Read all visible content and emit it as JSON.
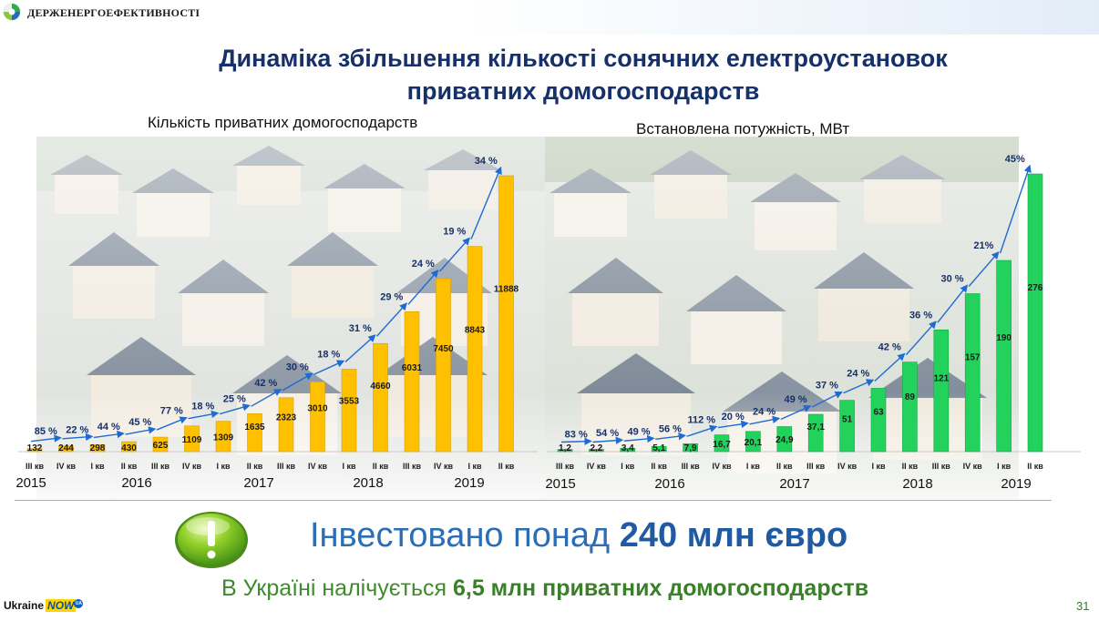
{
  "header": {
    "org": "ДЕРЖЕНЕРГОЕФЕКТИВНОСТІ"
  },
  "title": {
    "line1": "Динаміка збільшення кількості сонячних електроустановок",
    "line2": "приватних домогосподарств"
  },
  "colors": {
    "left_bars": "#ffc000",
    "right_bars": "#22d25c",
    "arrow": "#1e6bd2",
    "title": "#17306a"
  },
  "chart_data": [
    {
      "type": "bar",
      "subtitle": "Кількість приватних домогосподарств",
      "categories": [
        "III кв",
        "IV кв",
        "I кв",
        "II кв",
        "III кв",
        "IV кв",
        "I кв",
        "II кв",
        "III кв",
        "IV кв",
        "I кв",
        "II кв",
        "III кв",
        "IV кв",
        "I кв",
        "II кв"
      ],
      "value_labels": [
        "132",
        "244",
        "298",
        "430",
        "625",
        "1109",
        "1309",
        "1635",
        "2323",
        "3010",
        "3553",
        "4660",
        "6031",
        "7450",
        "8843",
        "11888"
      ],
      "values": [
        132,
        244,
        298,
        430,
        625,
        1109,
        1309,
        1635,
        2323,
        3010,
        3553,
        4660,
        6031,
        7450,
        8843,
        11888
      ],
      "growth_labels": [
        "85 %",
        "22 %",
        "44 %",
        "45 %",
        "77 %",
        "18 %",
        "25 %",
        "42 %",
        "30 %",
        "18 %",
        "31 %",
        "29 %",
        "24 %",
        "19 %",
        "34 %"
      ],
      "years": [
        {
          "label": "2015",
          "first": 0,
          "last": 0
        },
        {
          "label": "2016",
          "first": 1,
          "last": 4
        },
        {
          "label": "2017",
          "first": 5,
          "last": 8
        },
        {
          "label": "2018",
          "first": 9,
          "last": 12
        },
        {
          "label": "2019",
          "first": 13,
          "last": 15
        }
      ],
      "ylim": [
        0,
        12300
      ]
    },
    {
      "type": "bar",
      "subtitle": "Встановлена потужність, МВт",
      "categories": [
        "III кв",
        "IV кв",
        "I кв",
        "II кв",
        "III кв",
        "IV кв",
        "I кв",
        "II кв",
        "III кв",
        "IV кв",
        "I кв",
        "II кв",
        "III кв",
        "IV кв",
        "I кв",
        "II кв"
      ],
      "value_labels": [
        "1,2",
        "2,2",
        "3,4",
        "5,1",
        "7,9",
        "16,7",
        "20,1",
        "24,9",
        "37,1",
        "51",
        "63",
        "89",
        "121",
        "157",
        "190",
        "276"
      ],
      "values": [
        1.2,
        2.2,
        3.4,
        5.1,
        7.9,
        16.7,
        20.1,
        24.9,
        37.1,
        51,
        63,
        89,
        121,
        157,
        190,
        276
      ],
      "growth_labels": [
        "83 %",
        "54 %",
        "49 %",
        "56 %",
        "112 %",
        "20 %",
        "24 %",
        "49 %",
        "37 %",
        "24 %",
        "42 %",
        "36 %",
        "30 %",
        "21%",
        "45%"
      ],
      "years": [
        {
          "label": "2015",
          "first": 0,
          "last": 0
        },
        {
          "label": "2016",
          "first": 1,
          "last": 4
        },
        {
          "label": "2017",
          "first": 5,
          "last": 8
        },
        {
          "label": "2018",
          "first": 9,
          "last": 12
        },
        {
          "label": "2019",
          "first": 13,
          "last": 15
        }
      ],
      "ylim": [
        0,
        285
      ]
    }
  ],
  "footer": {
    "invest_prefix": "Інвестовано понад ",
    "invest_bold": "240 млн євро",
    "households_prefix": "В Україні налічується ",
    "households_bold": "6,5 млн приватних домогосподарств",
    "page_number": "31",
    "brand": "Ukraine",
    "brand_now": "NOW",
    "brand_ua": "UA"
  }
}
